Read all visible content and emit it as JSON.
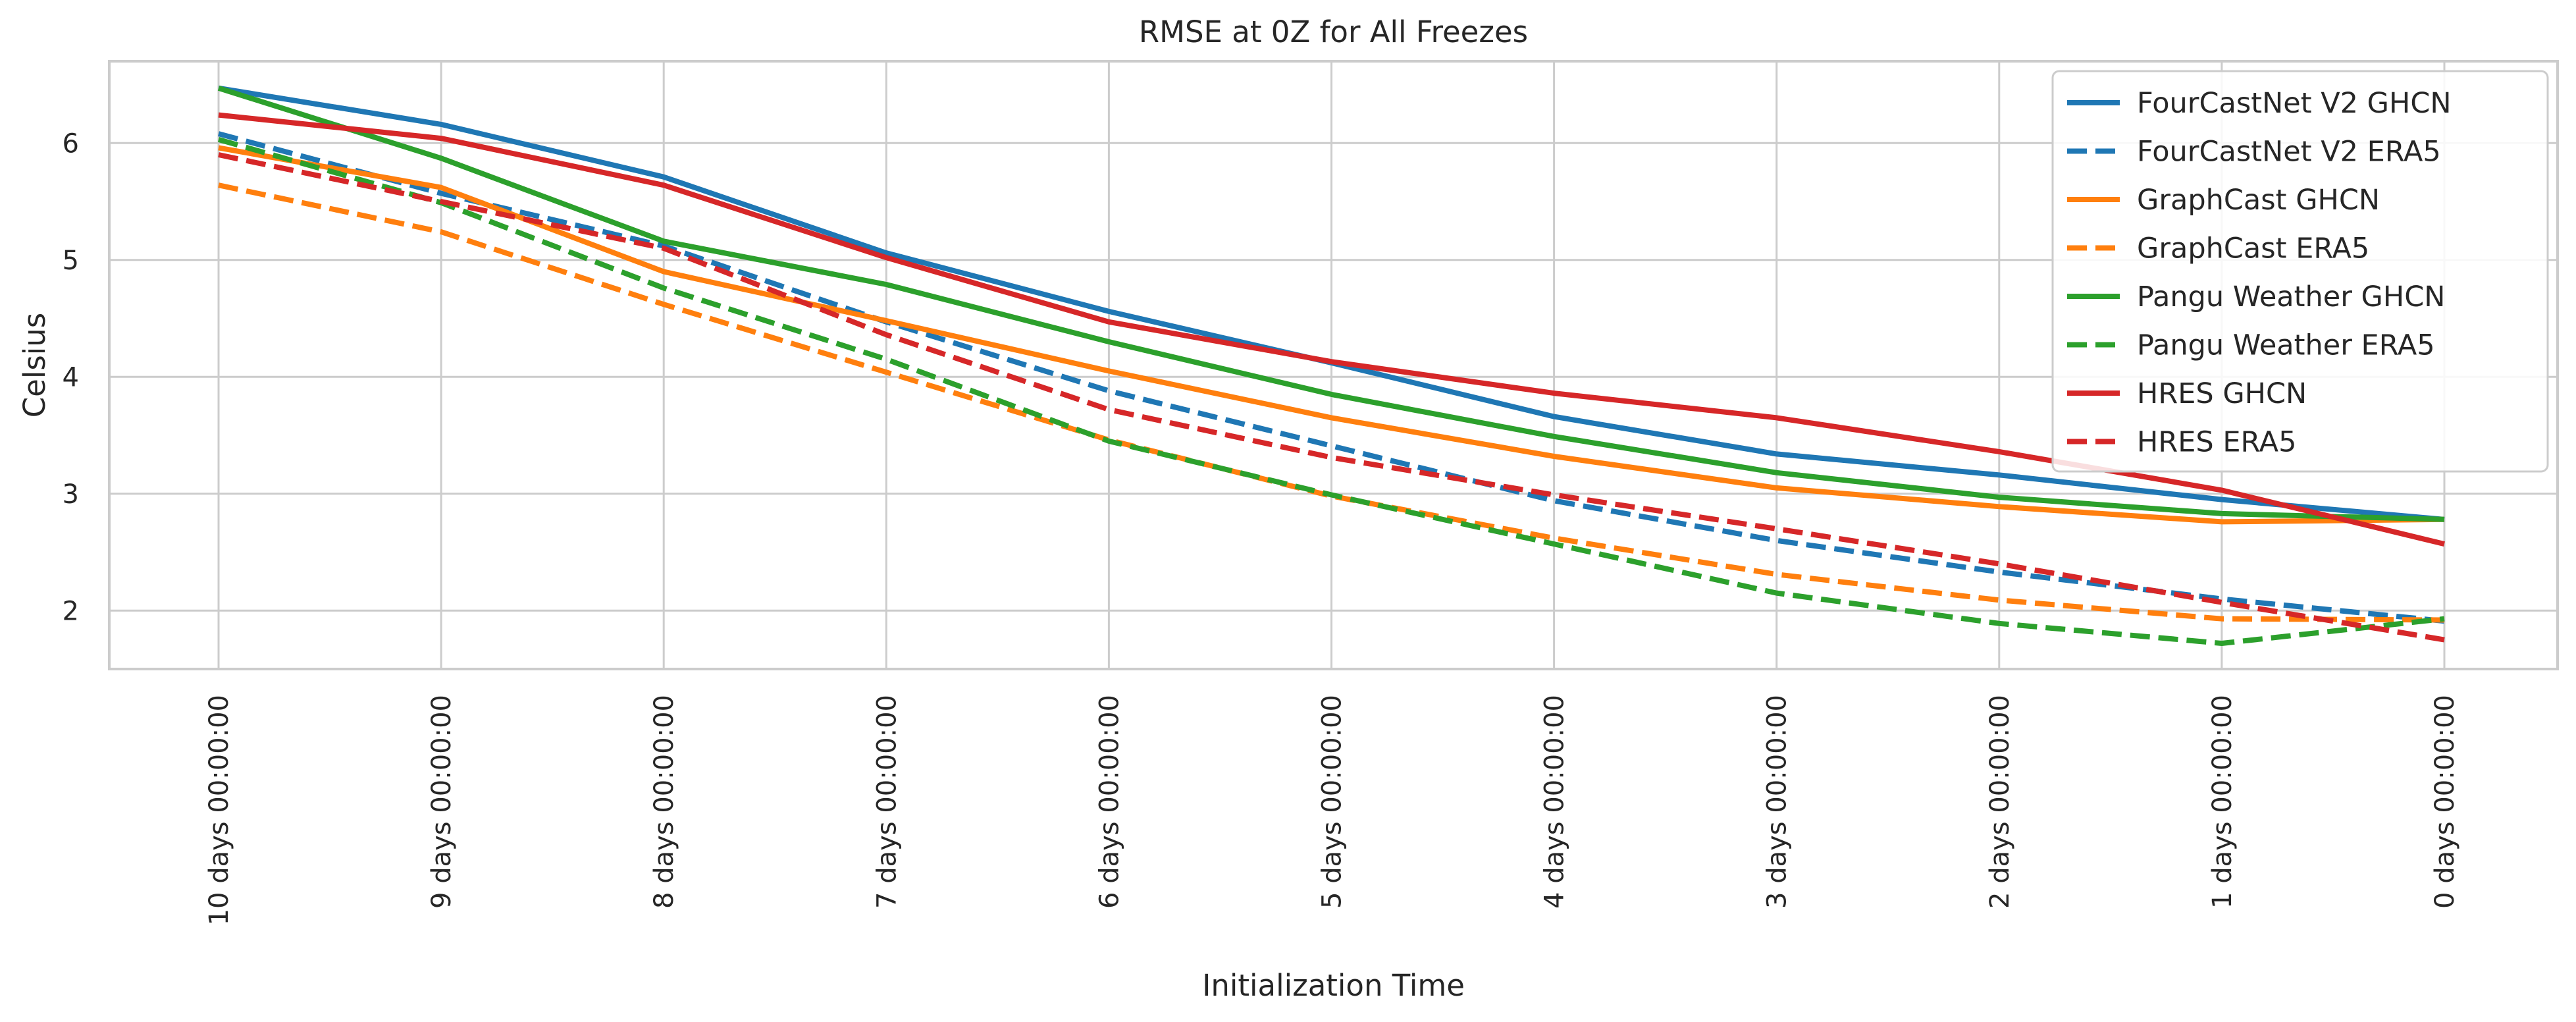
{
  "chart_data": {
    "type": "line",
    "title": "RMSE at 0Z for All Freezes",
    "xlabel": "Initialization Time",
    "ylabel": "Celsius",
    "categories": [
      "10 days 00:00:00",
      "9 days 00:00:00",
      "8 days 00:00:00",
      "7 days 00:00:00",
      "6 days 00:00:00",
      "5 days 00:00:00",
      "4 days 00:00:00",
      "3 days 00:00:00",
      "2 days 00:00:00",
      "1 days 00:00:00",
      "0 days 00:00:00"
    ],
    "ylim": [
      1.5,
      6.7
    ],
    "yticks": [
      2,
      3,
      4,
      5,
      6
    ],
    "grid": true,
    "legend_position": "top-right",
    "series": [
      {
        "name": "FourCastNet V2 GHCN",
        "color": "#1f77b4",
        "dashed": false,
        "values": [
          6.47,
          6.16,
          5.71,
          5.06,
          4.56,
          4.12,
          3.66,
          3.34,
          3.16,
          2.95,
          2.78
        ]
      },
      {
        "name": "FourCastNet V2 ERA5",
        "color": "#1f77b4",
        "dashed": true,
        "values": [
          6.08,
          5.57,
          5.12,
          4.47,
          3.88,
          3.41,
          2.94,
          2.6,
          2.33,
          2.1,
          1.91
        ]
      },
      {
        "name": "GraphCast GHCN",
        "color": "#ff7f0e",
        "dashed": false,
        "values": [
          5.96,
          5.62,
          4.9,
          4.48,
          4.05,
          3.65,
          3.32,
          3.05,
          2.89,
          2.76,
          2.78
        ]
      },
      {
        "name": "GraphCast ERA5",
        "color": "#ff7f0e",
        "dashed": true,
        "values": [
          5.64,
          5.24,
          4.62,
          4.04,
          3.46,
          2.98,
          2.62,
          2.31,
          2.09,
          1.93,
          1.92
        ]
      },
      {
        "name": "Pangu Weather GHCN",
        "color": "#2ca02c",
        "dashed": false,
        "values": [
          6.47,
          5.87,
          5.16,
          4.79,
          4.3,
          3.85,
          3.49,
          3.18,
          2.97,
          2.83,
          2.78
        ]
      },
      {
        "name": "Pangu Weather ERA5",
        "color": "#2ca02c",
        "dashed": true,
        "values": [
          6.03,
          5.49,
          4.76,
          4.15,
          3.45,
          2.99,
          2.57,
          2.15,
          1.89,
          1.72,
          1.93
        ]
      },
      {
        "name": "HRES GHCN",
        "color": "#d62728",
        "dashed": false,
        "values": [
          6.24,
          6.04,
          5.64,
          5.02,
          4.47,
          4.13,
          3.86,
          3.65,
          3.36,
          3.03,
          2.57
        ]
      },
      {
        "name": "HRES ERA5",
        "color": "#d62728",
        "dashed": true,
        "values": [
          5.9,
          5.5,
          5.1,
          4.36,
          3.72,
          3.31,
          2.99,
          2.7,
          2.4,
          2.07,
          1.75
        ]
      }
    ]
  }
}
